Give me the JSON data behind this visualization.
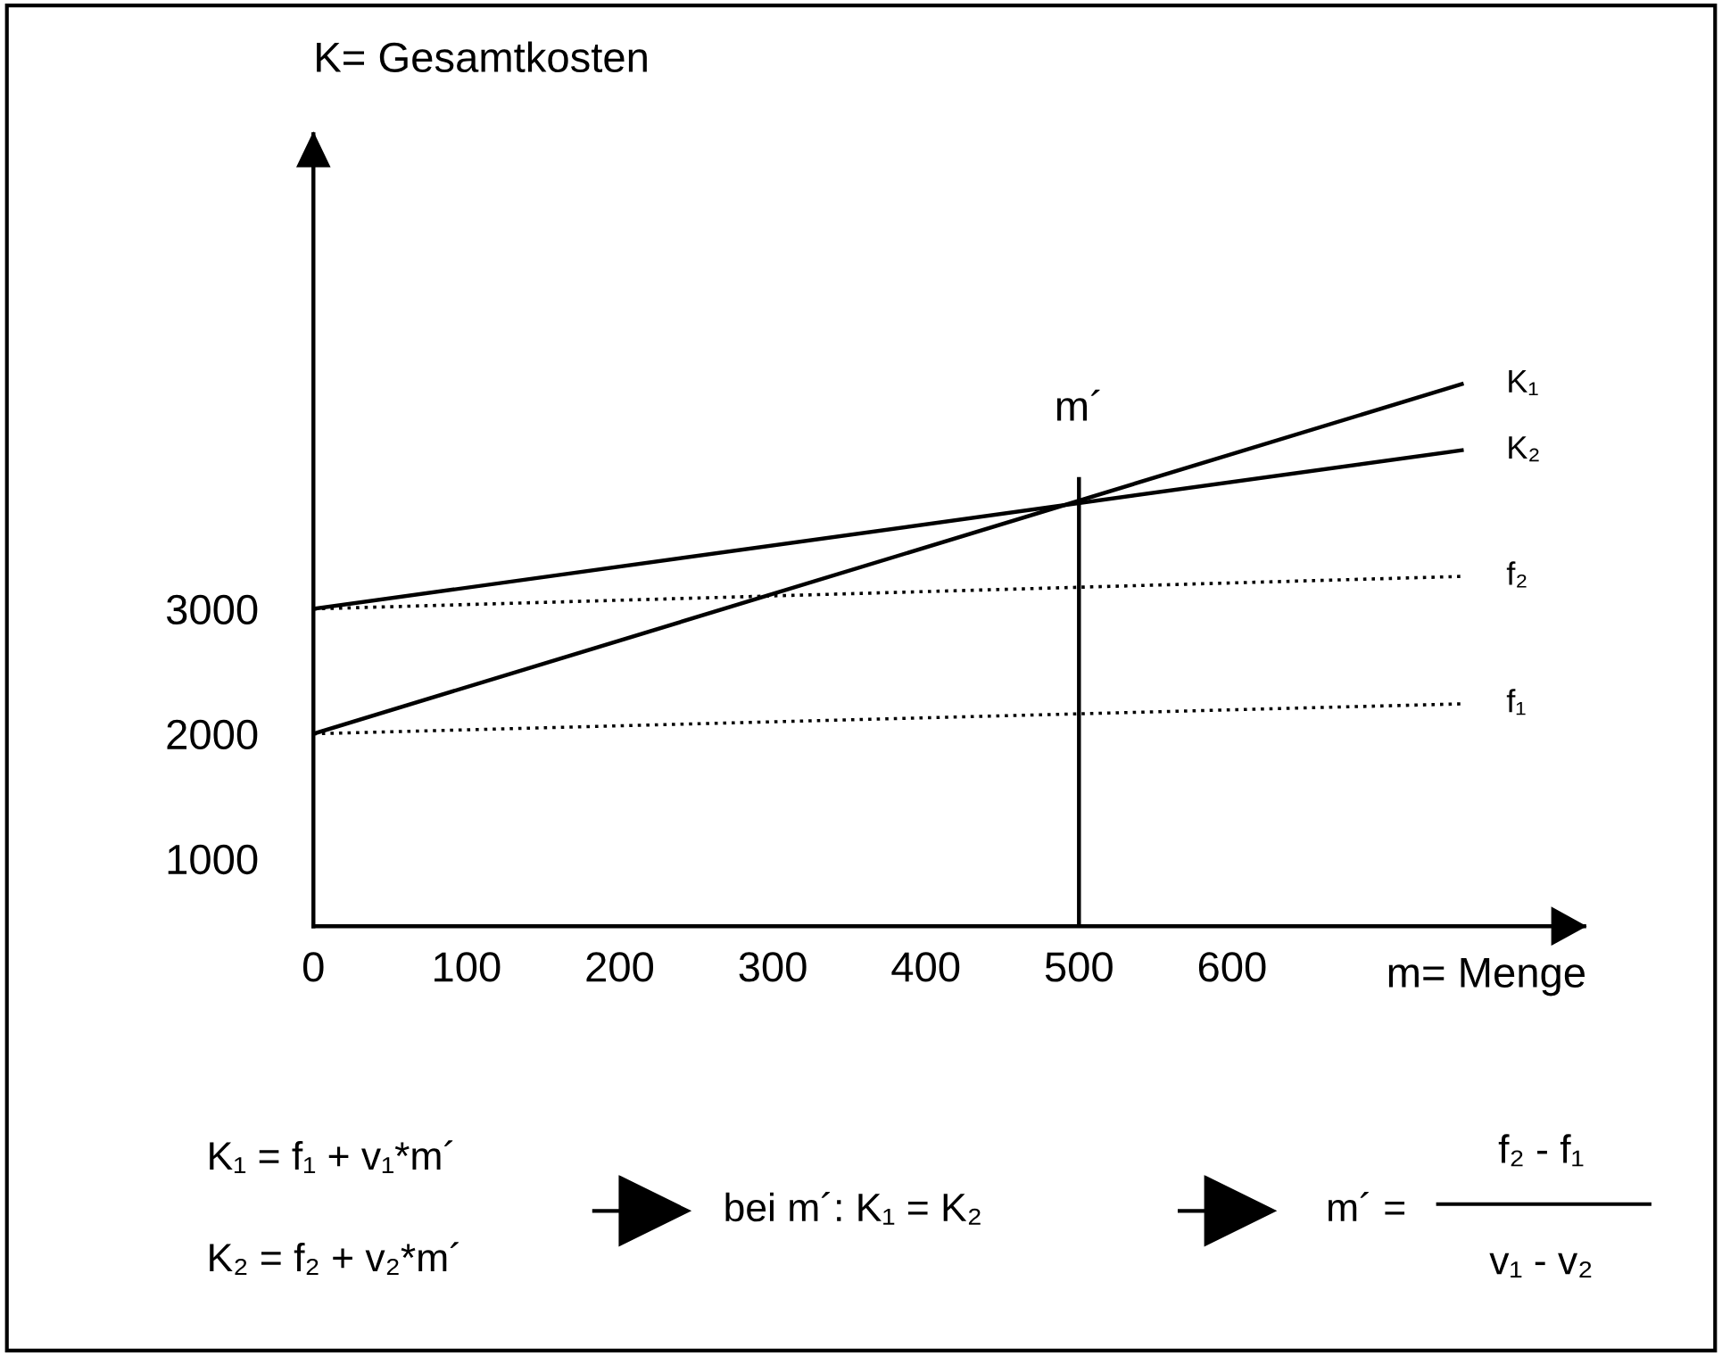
{
  "chart_data": {
    "type": "line",
    "xlabel": "m= Menge",
    "ylabel": "K= Gesamtkosten",
    "xlim": [
      0,
      830
    ],
    "ylim": [
      460,
      6800
    ],
    "xticks": [
      0,
      100,
      200,
      300,
      400,
      500,
      600
    ],
    "yticks": [
      1000,
      2000,
      3000
    ],
    "grid": false,
    "series": [
      {
        "name": "K₁",
        "color": "#000000",
        "x": [
          0,
          750
        ],
        "values": [
          2000,
          4800
        ],
        "line_style": "solid"
      },
      {
        "name": "K₂",
        "color": "#000000",
        "x": [
          0,
          750
        ],
        "values": [
          3000,
          4270
        ],
        "line_style": "solid"
      },
      {
        "name": "f₂",
        "color": "#000000",
        "x": [
          0,
          750
        ],
        "values": [
          3000,
          3260
        ],
        "line_style": "dotted"
      },
      {
        "name": "f₁",
        "color": "#000000",
        "x": [
          0,
          750
        ],
        "values": [
          2000,
          2240
        ],
        "line_style": "dotted"
      },
      {
        "name": "m´",
        "color": "#000000",
        "x": [
          500,
          500
        ],
        "values": [
          460,
          4040
        ],
        "line_style": "solid"
      }
    ],
    "annotations": [
      "K₁ = f₁ + v₁*m´",
      "K₂ = f₂ + v₂*m´",
      "bei m´: K₁ = K₂",
      "m´ =",
      "f₂ - f₁",
      "v₁ - v₂"
    ]
  }
}
